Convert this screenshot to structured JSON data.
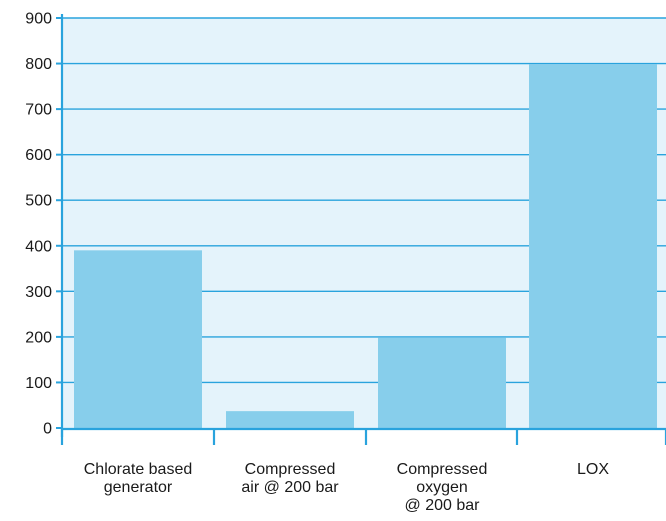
{
  "chart_data": {
    "type": "bar",
    "title": "",
    "xlabel": "",
    "ylabel": "",
    "categories": [
      [
        "Chlorate based",
        "generator"
      ],
      [
        "Compressed",
        "air @ 200 bar"
      ],
      [
        "Compressed",
        "oxygen",
        "@ 200 bar"
      ],
      [
        "LOX"
      ]
    ],
    "values": [
      390,
      37,
      198,
      798
    ],
    "ylim": [
      0,
      900
    ],
    "yticks": [
      0,
      100,
      200,
      300,
      400,
      500,
      600,
      700,
      800,
      900
    ],
    "grid": true,
    "legend": "none",
    "colors": {
      "bar": "#87ceeb",
      "plot_background": "#e4f3fb",
      "gridline": "#29a3dd",
      "axis": "#29a3dd",
      "text": "#1a1a1a"
    }
  }
}
